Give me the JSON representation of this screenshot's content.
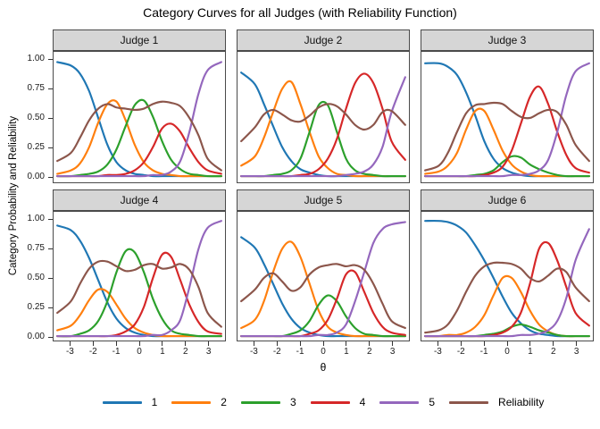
{
  "chart_data": {
    "type": "line",
    "title": "Category Curves for all Judges (with Reliability Function)",
    "xlabel": "θ",
    "ylabel": "Category  Probability  and  Reliability",
    "x_domain": [
      -3.75,
      3.75
    ],
    "y_domain": [
      0,
      1
    ],
    "grid": "off",
    "legend_position": "bottom",
    "x_ticks": {
      "values": [
        -3,
        -2,
        -1,
        0,
        1,
        2,
        3
      ],
      "labels": [
        "-3",
        "-2",
        "-1",
        "0",
        "1",
        "2",
        "3"
      ]
    },
    "y_ticks": {
      "values": [
        0,
        0.25,
        0.5,
        0.75,
        1
      ],
      "labels": [
        "0.00",
        "0.25",
        "0.50",
        "0.75",
        "1.00"
      ]
    },
    "theta": [
      -3.6,
      -3.0,
      -2.6,
      -2.2,
      -1.8,
      -1.4,
      -1.0,
      -0.6,
      -0.2,
      0.2,
      0.6,
      1.0,
      1.4,
      1.8,
      2.2,
      2.6,
      3.0,
      3.6
    ],
    "series_meta": [
      {
        "key": "c1",
        "label": "1",
        "color": "#1f77b4"
      },
      {
        "key": "c2",
        "label": "2",
        "color": "#ff7f0e"
      },
      {
        "key": "c3",
        "label": "3",
        "color": "#2ca02c"
      },
      {
        "key": "c4",
        "label": "4",
        "color": "#d62728"
      },
      {
        "key": "c5",
        "label": "5",
        "color": "#9467bd"
      },
      {
        "key": "rel",
        "label": "Reliability",
        "color": "#8c564b"
      }
    ],
    "panels": [
      {
        "title": "Judge 1",
        "series": {
          "c1": [
            0.98,
            0.95,
            0.88,
            0.73,
            0.5,
            0.27,
            0.12,
            0.05,
            0.02,
            0.01,
            0,
            0,
            0,
            0,
            0,
            0,
            0,
            0
          ],
          "c2": [
            0.02,
            0.05,
            0.11,
            0.25,
            0.46,
            0.62,
            0.64,
            0.48,
            0.27,
            0.12,
            0.05,
            0.02,
            0.01,
            0,
            0,
            0,
            0,
            0
          ],
          "c3": [
            0,
            0,
            0.01,
            0.02,
            0.04,
            0.1,
            0.23,
            0.43,
            0.61,
            0.65,
            0.51,
            0.3,
            0.14,
            0.06,
            0.02,
            0.01,
            0,
            0
          ],
          "c4": [
            0,
            0,
            0,
            0,
            0,
            0.01,
            0.01,
            0.02,
            0.05,
            0.12,
            0.25,
            0.41,
            0.45,
            0.38,
            0.24,
            0.12,
            0.05,
            0.02
          ],
          "c5": [
            0,
            0,
            0,
            0,
            0,
            0,
            0,
            0,
            0,
            0,
            0.01,
            0.01,
            0.04,
            0.13,
            0.38,
            0.71,
            0.91,
            0.98
          ],
          "rel": [
            0.13,
            0.2,
            0.33,
            0.48,
            0.58,
            0.62,
            0.59,
            0.58,
            0.57,
            0.58,
            0.62,
            0.64,
            0.63,
            0.6,
            0.5,
            0.35,
            0.15,
            0.05
          ]
        }
      },
      {
        "title": "Judge 2",
        "series": {
          "c1": [
            0.89,
            0.79,
            0.62,
            0.43,
            0.25,
            0.13,
            0.06,
            0.03,
            0.01,
            0,
            0,
            0,
            0,
            0,
            0,
            0,
            0,
            0
          ],
          "c2": [
            0.09,
            0.17,
            0.33,
            0.55,
            0.75,
            0.81,
            0.62,
            0.38,
            0.17,
            0.07,
            0.02,
            0.01,
            0,
            0,
            0,
            0,
            0,
            0
          ],
          "c3": [
            0,
            0,
            0,
            0.01,
            0.02,
            0.05,
            0.15,
            0.38,
            0.61,
            0.61,
            0.38,
            0.15,
            0.05,
            0.02,
            0.01,
            0,
            0,
            0
          ],
          "c4": [
            0,
            0,
            0,
            0,
            0,
            0,
            0.01,
            0.02,
            0.06,
            0.15,
            0.32,
            0.58,
            0.8,
            0.88,
            0.8,
            0.58,
            0.3,
            0.14
          ],
          "c5": [
            0,
            0,
            0,
            0,
            0,
            0,
            0,
            0,
            0,
            0,
            0,
            0.01,
            0.02,
            0.04,
            0.1,
            0.25,
            0.55,
            0.85
          ],
          "rel": [
            0.3,
            0.42,
            0.53,
            0.57,
            0.53,
            0.48,
            0.47,
            0.52,
            0.59,
            0.62,
            0.6,
            0.53,
            0.44,
            0.4,
            0.44,
            0.55,
            0.56,
            0.44
          ]
        }
      },
      {
        "title": "Judge 3",
        "series": {
          "c1": [
            0.97,
            0.97,
            0.94,
            0.87,
            0.72,
            0.52,
            0.3,
            0.15,
            0.07,
            0.03,
            0.01,
            0,
            0,
            0,
            0,
            0,
            0,
            0
          ],
          "c2": [
            0.02,
            0.04,
            0.09,
            0.2,
            0.4,
            0.56,
            0.56,
            0.4,
            0.22,
            0.1,
            0.04,
            0.01,
            0,
            0,
            0,
            0,
            0,
            0
          ],
          "c3": [
            0,
            0,
            0,
            0,
            0,
            0.01,
            0.02,
            0.05,
            0.12,
            0.17,
            0.16,
            0.1,
            0.06,
            0.03,
            0.01,
            0,
            0,
            0
          ],
          "c4": [
            0,
            0,
            0,
            0,
            0,
            0,
            0.01,
            0.03,
            0.08,
            0.22,
            0.45,
            0.68,
            0.77,
            0.62,
            0.38,
            0.18,
            0.07,
            0.03
          ],
          "c5": [
            0,
            0,
            0,
            0,
            0,
            0,
            0,
            0,
            0,
            0.01,
            0.01,
            0.02,
            0.05,
            0.14,
            0.38,
            0.7,
            0.9,
            0.97
          ],
          "rel": [
            0.05,
            0.09,
            0.2,
            0.38,
            0.54,
            0.61,
            0.62,
            0.63,
            0.62,
            0.56,
            0.51,
            0.5,
            0.54,
            0.57,
            0.55,
            0.44,
            0.27,
            0.13
          ]
        }
      },
      {
        "title": "Judge 4",
        "series": {
          "c1": [
            0.95,
            0.91,
            0.82,
            0.67,
            0.48,
            0.29,
            0.15,
            0.07,
            0.03,
            0.01,
            0,
            0,
            0,
            0,
            0,
            0,
            0,
            0
          ],
          "c2": [
            0.05,
            0.09,
            0.18,
            0.31,
            0.4,
            0.38,
            0.27,
            0.15,
            0.07,
            0.03,
            0.01,
            0,
            0,
            0,
            0,
            0,
            0,
            0
          ],
          "c3": [
            0,
            0,
            0.02,
            0.05,
            0.13,
            0.3,
            0.55,
            0.73,
            0.72,
            0.55,
            0.32,
            0.15,
            0.05,
            0.02,
            0.01,
            0,
            0,
            0
          ],
          "c4": [
            0,
            0,
            0,
            0,
            0,
            0,
            0.01,
            0.04,
            0.1,
            0.25,
            0.5,
            0.7,
            0.68,
            0.48,
            0.27,
            0.12,
            0.04,
            0.02
          ],
          "c5": [
            0,
            0,
            0,
            0,
            0,
            0,
            0,
            0,
            0,
            0,
            0.01,
            0.01,
            0.05,
            0.14,
            0.42,
            0.75,
            0.93,
            0.99
          ],
          "rel": [
            0.2,
            0.3,
            0.45,
            0.58,
            0.64,
            0.64,
            0.6,
            0.56,
            0.57,
            0.61,
            0.62,
            0.58,
            0.59,
            0.62,
            0.57,
            0.42,
            0.2,
            0.08
          ]
        }
      },
      {
        "title": "Judge 5",
        "series": {
          "c1": [
            0.85,
            0.76,
            0.62,
            0.45,
            0.28,
            0.15,
            0.07,
            0.03,
            0.01,
            0,
            0,
            0,
            0,
            0,
            0,
            0,
            0,
            0
          ],
          "c2": [
            0.07,
            0.14,
            0.3,
            0.55,
            0.75,
            0.81,
            0.68,
            0.45,
            0.22,
            0.08,
            0.03,
            0.01,
            0,
            0,
            0,
            0,
            0,
            0
          ],
          "c3": [
            0,
            0,
            0,
            0,
            0,
            0.02,
            0.05,
            0.13,
            0.27,
            0.35,
            0.3,
            0.17,
            0.07,
            0.02,
            0.01,
            0,
            0,
            0
          ],
          "c4": [
            0,
            0,
            0,
            0,
            0,
            0,
            0,
            0.02,
            0.05,
            0.14,
            0.32,
            0.53,
            0.55,
            0.38,
            0.2,
            0.08,
            0.03,
            0.01
          ],
          "c5": [
            0,
            0,
            0,
            0,
            0,
            0,
            0,
            0,
            0.01,
            0.01,
            0.03,
            0.1,
            0.3,
            0.55,
            0.8,
            0.92,
            0.96,
            0.98
          ],
          "rel": [
            0.3,
            0.4,
            0.5,
            0.54,
            0.47,
            0.39,
            0.42,
            0.53,
            0.59,
            0.61,
            0.62,
            0.6,
            0.61,
            0.57,
            0.45,
            0.28,
            0.13,
            0.07
          ]
        }
      },
      {
        "title": "Judge 6",
        "series": {
          "c1": [
            0.99,
            0.99,
            0.98,
            0.95,
            0.89,
            0.78,
            0.65,
            0.5,
            0.34,
            0.2,
            0.11,
            0.05,
            0.02,
            0.01,
            0,
            0,
            0,
            0
          ],
          "c2": [
            0,
            0,
            0.01,
            0.01,
            0.03,
            0.08,
            0.18,
            0.35,
            0.5,
            0.5,
            0.38,
            0.22,
            0.1,
            0.04,
            0.01,
            0,
            0,
            0
          ],
          "c3": [
            0,
            0,
            0,
            0,
            0,
            0,
            0.01,
            0.02,
            0.04,
            0.08,
            0.1,
            0.08,
            0.05,
            0.03,
            0.01,
            0,
            0,
            0
          ],
          "c4": [
            0,
            0,
            0,
            0,
            0,
            0,
            0,
            0.01,
            0.03,
            0.08,
            0.2,
            0.45,
            0.75,
            0.8,
            0.65,
            0.42,
            0.2,
            0.09
          ],
          "c5": [
            0,
            0,
            0,
            0,
            0,
            0,
            0,
            0,
            0,
            0,
            0.01,
            0.01,
            0.02,
            0.05,
            0.13,
            0.33,
            0.65,
            0.92
          ],
          "rel": [
            0.03,
            0.05,
            0.1,
            0.22,
            0.38,
            0.52,
            0.6,
            0.63,
            0.63,
            0.62,
            0.58,
            0.5,
            0.47,
            0.52,
            0.58,
            0.55,
            0.42,
            0.3
          ]
        }
      }
    ]
  }
}
